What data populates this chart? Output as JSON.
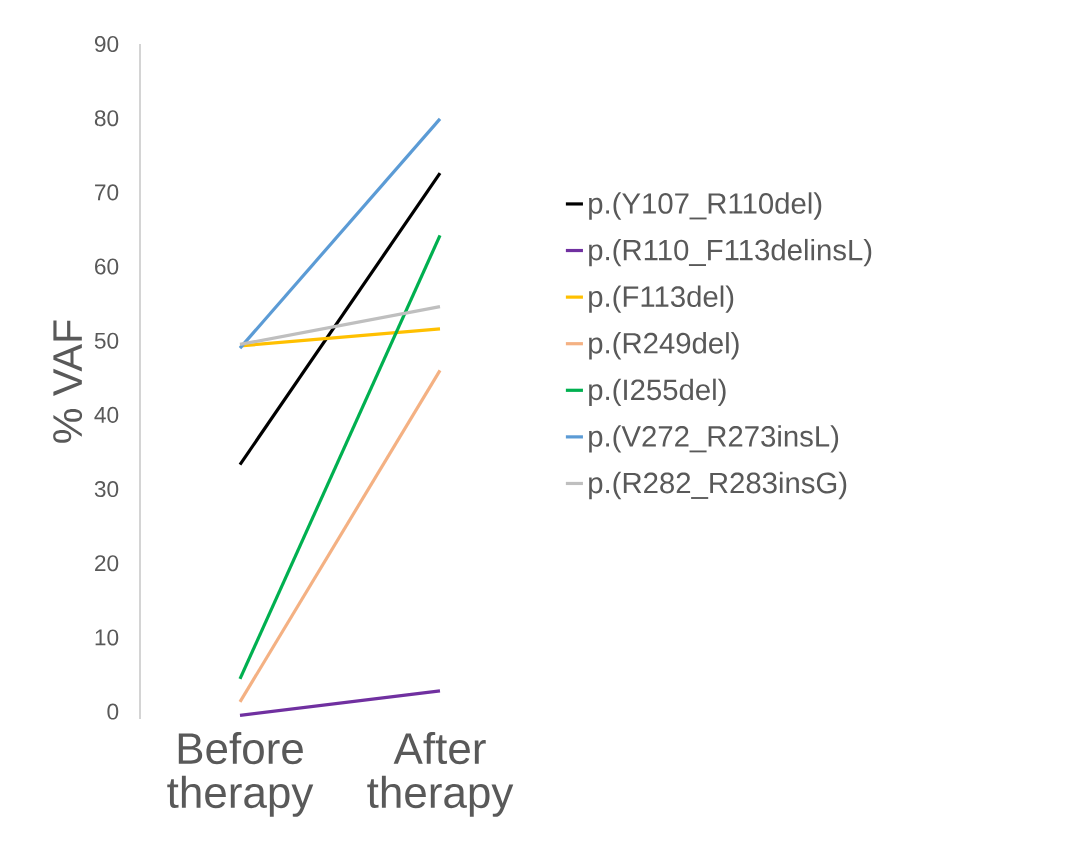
{
  "chart_data": {
    "type": "line",
    "ylabel": "% VAF",
    "categories": [
      "Before therapy",
      "After therapy"
    ],
    "ylim": [
      -1,
      90
    ],
    "yticks": [
      0,
      10,
      20,
      30,
      40,
      50,
      60,
      70,
      80,
      90
    ],
    "grid": false,
    "legend": "right",
    "marker": "none",
    "line_style": "solid",
    "series": [
      {
        "name": "p.(Y107_R110del)",
        "color": "#000000",
        "values": [
          33.3,
          72.6
        ]
      },
      {
        "name": "p.(R110_F113delinsL)",
        "color": "#7030a0",
        "values": [
          -0.5,
          2.8
        ]
      },
      {
        "name": "p.(F113del)",
        "color": "#ffc000",
        "values": [
          49.3,
          51.6
        ]
      },
      {
        "name": "p.(R249del)",
        "color": "#f4b183",
        "values": [
          1.3,
          46.0
        ]
      },
      {
        "name": "p.(I255del)",
        "color": "#00b050",
        "values": [
          4.4,
          64.2
        ]
      },
      {
        "name": "p.(V272_R273insL)",
        "color": "#5b9bd5",
        "values": [
          49.0,
          79.9
        ]
      },
      {
        "name": "p.(R282_R283insG)",
        "color": "#bfbfbf",
        "values": [
          49.5,
          54.6
        ]
      }
    ]
  }
}
